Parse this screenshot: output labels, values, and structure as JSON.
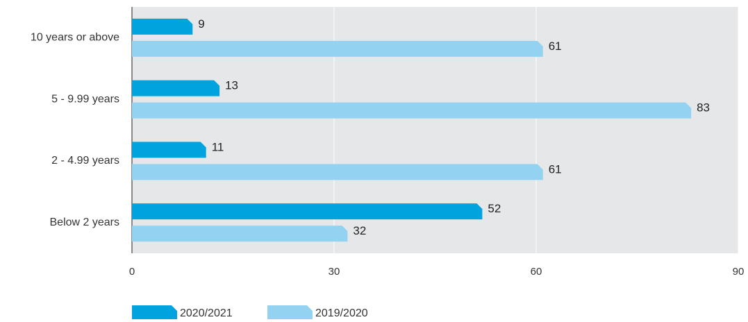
{
  "chart_data": {
    "type": "bar",
    "orientation": "horizontal",
    "categories": [
      "10 years or above",
      "5 - 9.99 years",
      "2 - 4.99 years",
      "Below 2 years"
    ],
    "series": [
      {
        "name": "2020/2021",
        "color": "#00a3dd",
        "values": [
          9,
          13,
          11,
          52
        ]
      },
      {
        "name": "2019/2020",
        "color": "#93d3f1",
        "values": [
          61,
          83,
          61,
          32
        ]
      }
    ],
    "xlim": [
      0,
      90
    ],
    "xticks": [
      0,
      30,
      60,
      90
    ],
    "grid": true,
    "legend": "bottom"
  }
}
